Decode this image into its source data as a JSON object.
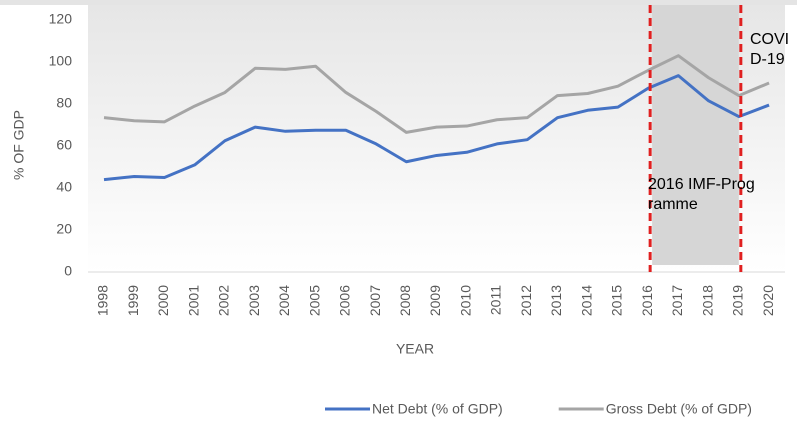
{
  "chart_data": {
    "type": "line",
    "x_label": "YEAR",
    "y_label": "% OF GDP",
    "categories": [
      "1998",
      "1999",
      "2000",
      "2001",
      "2002",
      "2003",
      "2004",
      "2005",
      "2006",
      "2007",
      "2008",
      "2009",
      "2010",
      "2011",
      "2012",
      "2013",
      "2014",
      "2015",
      "2016",
      "2017",
      "2018",
      "2019",
      "2020"
    ],
    "series": [
      {
        "name": "Net Debt (% of GDP)",
        "color": "#4472c4",
        "values": [
          44,
          45.5,
          45,
          51,
          62.5,
          69,
          67,
          67.5,
          67.5,
          61,
          52.5,
          55.5,
          57,
          61,
          63,
          73.5,
          77,
          78.5,
          87.5,
          93.5,
          81.5,
          74,
          79.5
        ]
      },
      {
        "name": "Gross Debt (% of GDP)",
        "color": "#a5a5a5",
        "values": [
          73.5,
          72,
          71.5,
          79,
          85.5,
          97,
          96.5,
          98,
          85.5,
          76.5,
          66.5,
          69,
          69.5,
          72.5,
          73.5,
          84,
          85,
          88.5,
          96,
          103,
          92.5,
          84,
          90
        ]
      }
    ],
    "ylim": [
      0,
      120
    ],
    "yticks": [
      0,
      20,
      40,
      60,
      80,
      100,
      120
    ],
    "grid": false,
    "legend": "bottom",
    "annotations": [
      "2016 IMF-Programme",
      "COVID-19"
    ]
  }
}
